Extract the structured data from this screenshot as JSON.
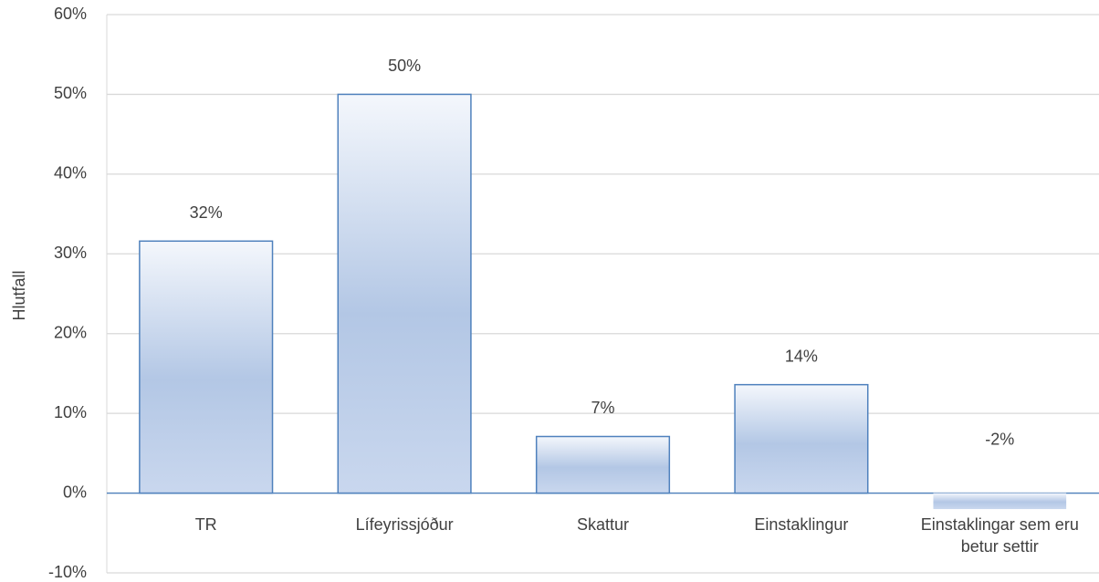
{
  "chart_data": {
    "type": "bar",
    "y_label": "Hlutfall",
    "categories": [
      "TR",
      "Lífeyrissjóður",
      "Skattur",
      "Einstaklingur",
      "Einstaklingar sem eru betur settir"
    ],
    "values": [
      31.6,
      50.0,
      7.1,
      13.6,
      -2.0
    ],
    "value_labels": [
      "32%",
      "50%",
      "7%",
      "14%",
      "-2%"
    ],
    "color": "#4f81bd",
    "ylim": [
      -10,
      60
    ],
    "yticks": [
      {
        "value": -10,
        "label": "-10%"
      },
      {
        "value": 0,
        "label": "0%"
      },
      {
        "value": 10,
        "label": "10%"
      },
      {
        "value": 20,
        "label": "20%"
      },
      {
        "value": 30,
        "label": "30%"
      },
      {
        "value": 40,
        "label": "40%"
      },
      {
        "value": 50,
        "label": "50%"
      },
      {
        "value": 60,
        "label": "60%"
      }
    ],
    "grid": true
  }
}
